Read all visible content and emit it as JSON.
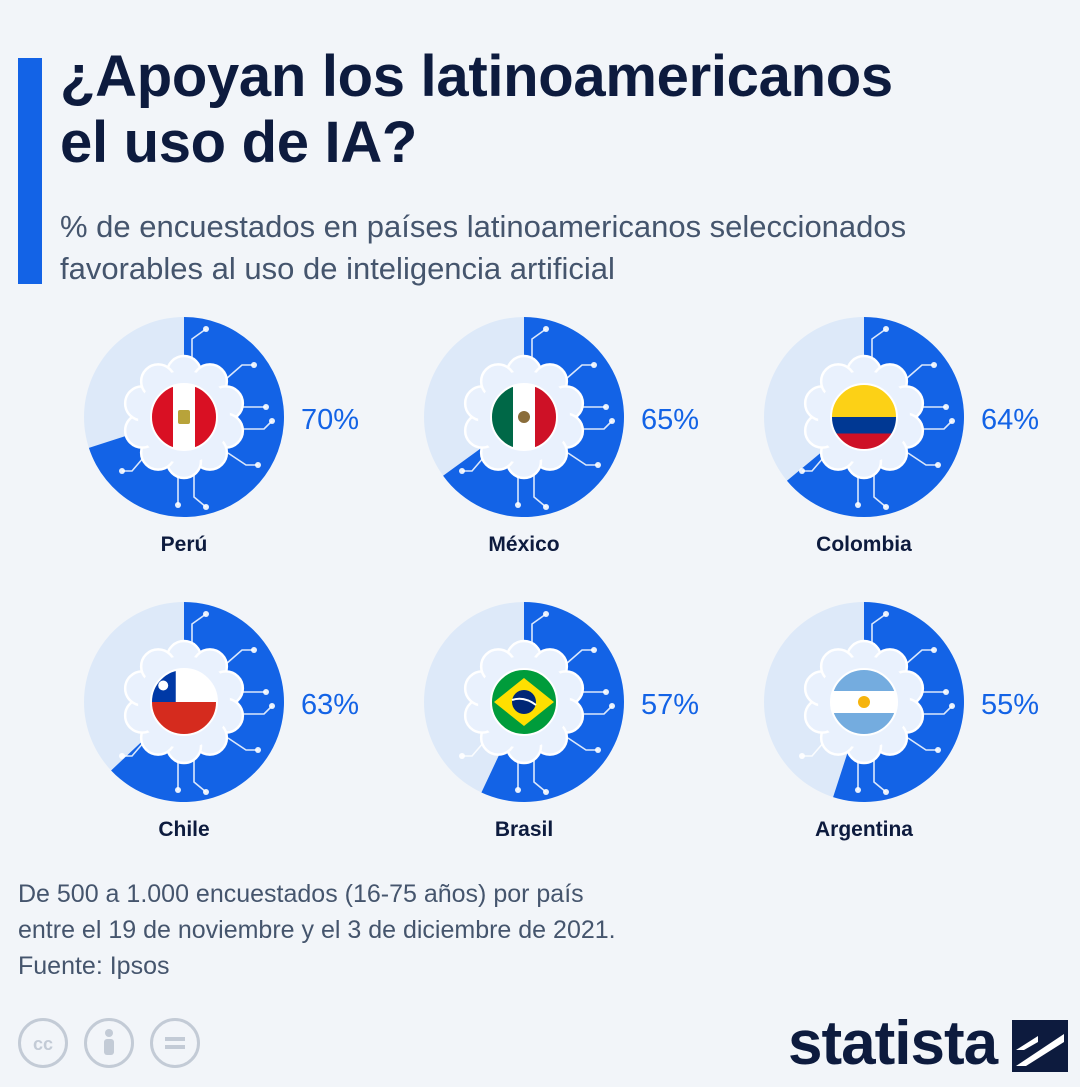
{
  "header": {
    "title_line1": "¿Apoyan los latinoamericanos",
    "title_line2": "el uso de IA?",
    "subtitle_line1": "% de encuestados en países latinoamericanos seleccionados",
    "subtitle_line2": "favorables al uso de inteligencia artificial"
  },
  "footer": {
    "note_line1": "De 500 a 1.000 encuestados (16-75 años) por país",
    "note_line2": "entre el 19 de noviembre y el 3 de diciembre de 2021.",
    "source": "Fuente: Ipsos",
    "brand": "statista"
  },
  "colors": {
    "accent": "#1363e6",
    "track": "#dde9f9",
    "text": "#0d1b3e",
    "muted": "#45556d",
    "value": "#1363e6"
  },
  "icons": [
    "cc-icon",
    "attribution-icon",
    "no-derivatives-icon",
    "statista-logo-icon"
  ],
  "chart_data": {
    "type": "pie",
    "title": "¿Apoyan los latinoamericanos el uso de IA?",
    "unit": "%",
    "categories": [
      "Perú",
      "México",
      "Colombia",
      "Chile",
      "Brasil",
      "Argentina"
    ],
    "values": [
      70,
      65,
      64,
      63,
      57,
      55
    ],
    "value_labels": [
      "70%",
      "65%",
      "64%",
      "63%",
      "57%",
      "55%"
    ],
    "flags": [
      "flag-peru-icon",
      "flag-mexico-icon",
      "flag-colombia-icon",
      "flag-chile-icon",
      "flag-brasil-icon",
      "flag-argentina-icon"
    ]
  }
}
